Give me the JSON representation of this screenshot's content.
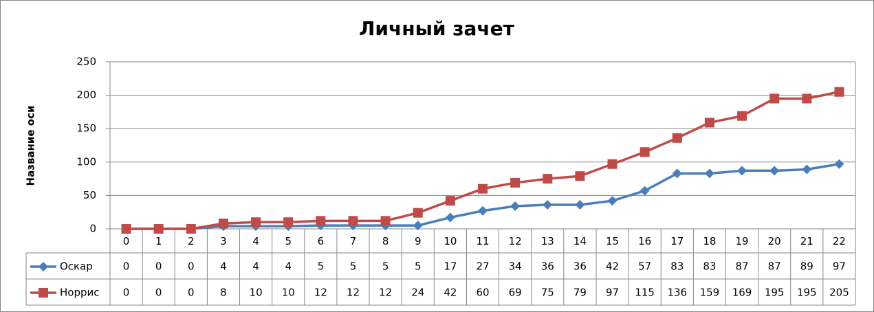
{
  "chart_data": {
    "type": "line",
    "title": "Личный зачет",
    "y_label": "Название оси",
    "categories": [
      "0",
      "1",
      "2",
      "3",
      "4",
      "5",
      "6",
      "7",
      "8",
      "9",
      "10",
      "11",
      "12",
      "13",
      "14",
      "15",
      "16",
      "17",
      "18",
      "19",
      "20",
      "21",
      "22"
    ],
    "series": [
      {
        "name": "Оскар",
        "color": "#4a7ebb",
        "marker": "diamond",
        "values": [
          0,
          0,
          0,
          4,
          4,
          4,
          5,
          5,
          5,
          5,
          17,
          27,
          34,
          36,
          36,
          42,
          57,
          83,
          83,
          87,
          87,
          89,
          97
        ]
      },
      {
        "name": "Норрис",
        "color": "#be4b48",
        "marker": "square",
        "values": [
          0,
          0,
          0,
          8,
          10,
          10,
          12,
          12,
          12,
          24,
          42,
          60,
          69,
          75,
          79,
          97,
          115,
          136,
          159,
          169,
          195,
          195,
          205
        ]
      }
    ],
    "ylim": [
      0,
      250
    ],
    "yticks": [
      0,
      50,
      100,
      150,
      200,
      250
    ],
    "grid": true,
    "data_table": true
  }
}
